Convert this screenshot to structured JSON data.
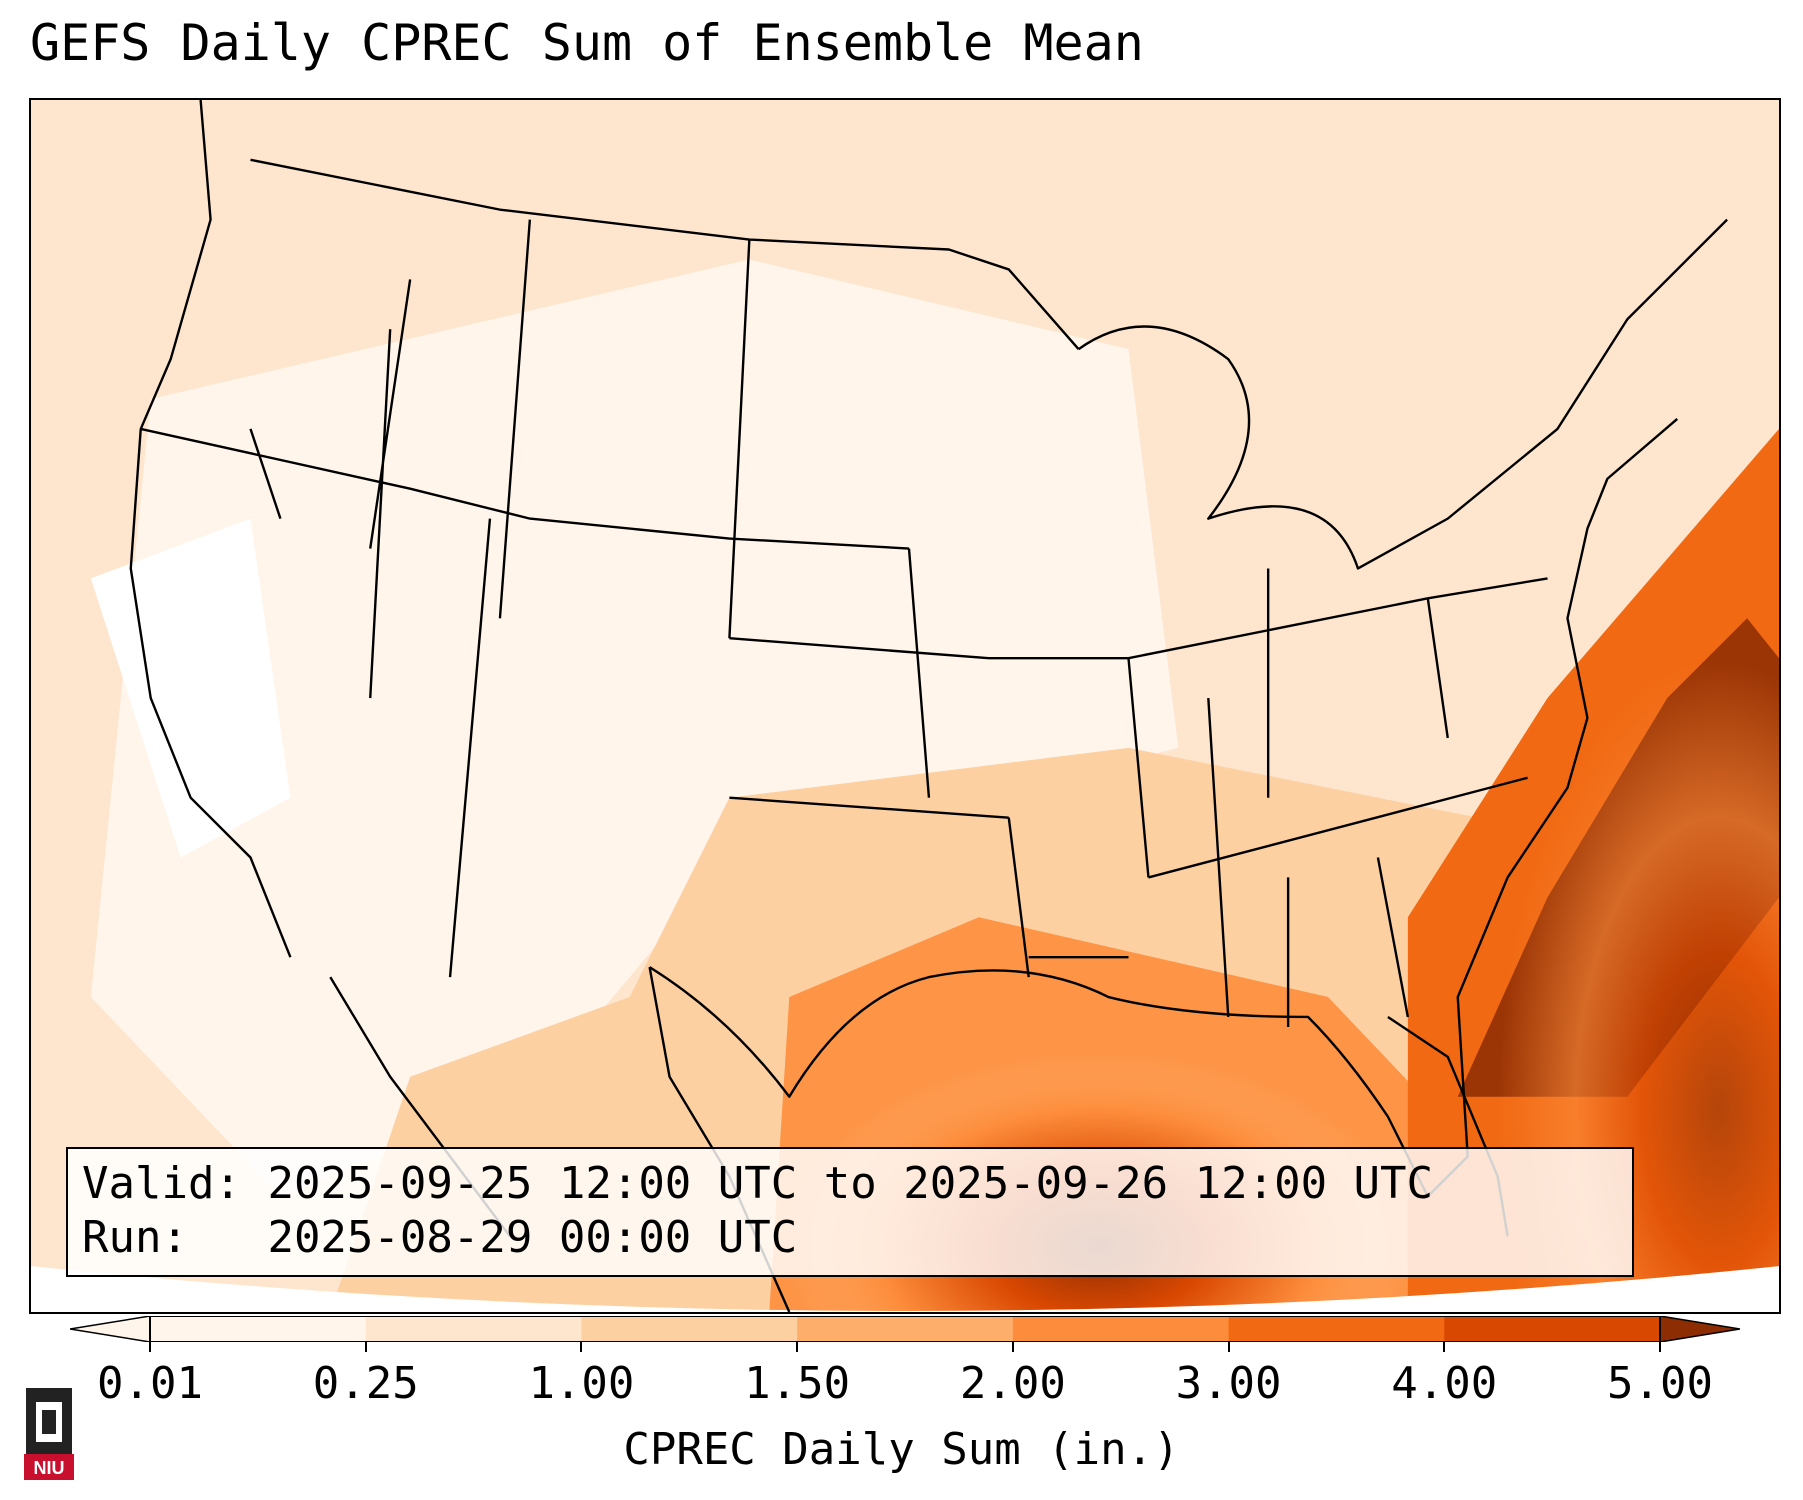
{
  "title": "GEFS Daily CPREC Sum of Ensemble Mean",
  "info": {
    "valid_label": "Valid:",
    "valid_value": "2025-09-25 12:00 UTC to 2025-09-26 12:00 UTC",
    "run_label": "Run:",
    "run_value": "2025-08-29 00:00 UTC"
  },
  "colorbar": {
    "label": "CPREC Daily Sum (in.)",
    "ticks": [
      "0.01",
      "0.25",
      "1.00",
      "1.50",
      "2.00",
      "3.00",
      "4.00",
      "5.00"
    ],
    "colors": [
      "#fff5eb",
      "#fee6ce",
      "#fdd0a2",
      "#fdae6b",
      "#fd8d3c",
      "#f16913",
      "#d94801",
      "#8c2d04"
    ],
    "extend": "both"
  },
  "logo": {
    "text": "NIU",
    "colors": {
      "shield": "#c8102e",
      "tower": "#222222"
    }
  },
  "map": {
    "projection": "lambert-conformal",
    "region": "CONUS",
    "colors": {
      "coast": "#000000",
      "bg": "#ffffff"
    }
  }
}
